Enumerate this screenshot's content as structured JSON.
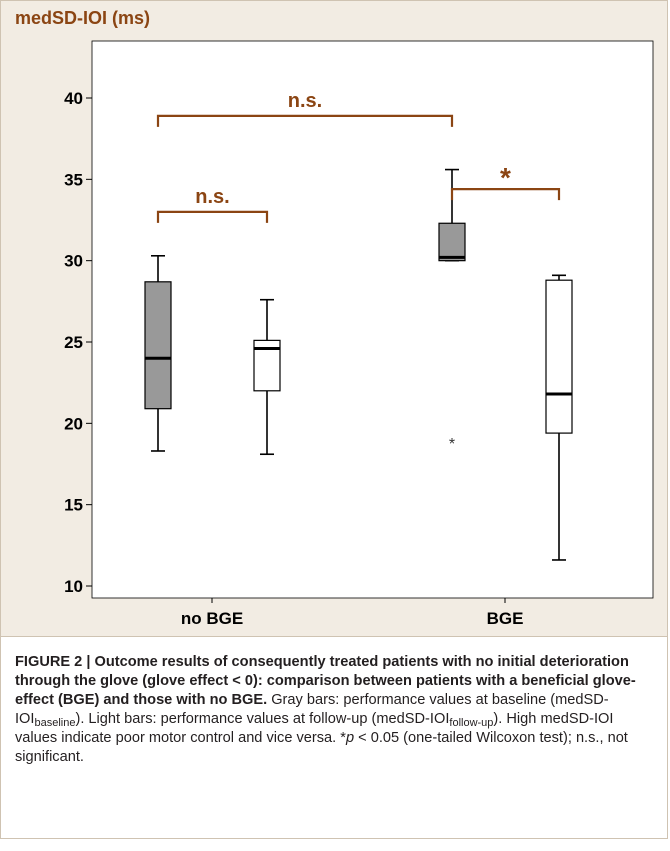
{
  "chart_data": {
    "type": "boxplot",
    "title": "medSD-IOI (ms)",
    "ylim": [
      9,
      41
    ],
    "yticks": [
      10,
      15,
      20,
      25,
      30,
      35,
      40
    ],
    "categories": [
      "no BGE",
      "BGE"
    ],
    "series": [
      {
        "name": "baseline",
        "color": "#999999"
      },
      {
        "name": "follow-up",
        "color": "#ffffff"
      }
    ],
    "boxes": [
      {
        "group": "no BGE",
        "series": "baseline",
        "min": 18.3,
        "q1": 20.9,
        "median": 24.0,
        "q3": 28.7,
        "max": 30.3,
        "outliers": []
      },
      {
        "group": "no BGE",
        "series": "follow-up",
        "min": 18.1,
        "q1": 22.0,
        "median": 24.6,
        "q3": 25.1,
        "max": 27.6,
        "outliers": []
      },
      {
        "group": "BGE",
        "series": "baseline",
        "min": 30.0,
        "q1": 30.0,
        "median": 30.2,
        "q3": 32.3,
        "max": 35.6,
        "outliers": [
          18.9
        ]
      },
      {
        "group": "BGE",
        "series": "follow-up",
        "min": 11.6,
        "q1": 19.4,
        "median": 21.8,
        "q3": 28.8,
        "max": 29.1,
        "outliers": []
      }
    ],
    "significance": [
      {
        "label": "n.s.",
        "from": "no BGE baseline",
        "to": "no BGE follow-up",
        "y": 33.0
      },
      {
        "label": "n.s.",
        "from": "no BGE baseline",
        "to": "BGE baseline",
        "y": 38.9
      },
      {
        "label": "*",
        "from": "BGE baseline",
        "to": "BGE follow-up",
        "y": 34.4
      }
    ]
  },
  "caption": {
    "lead": "FIGURE 2 | Outcome results of consequently treated patients with no initial deterioration through the glove (glove effect < 0): comparison between patients with a beneficial glove-effect (BGE) and those with no BGE.",
    "gray_pre": " Gray bars: performance values at baseline (medSD-IOI",
    "gray_sub": "baseline",
    "gray_post": ").",
    "light_pre": " Light bars: performance values at follow-up (medSD-IOI",
    "light_sub": "follow-up",
    "light_post": "). High medSD-IOI values indicate poor motor control and vice versa. *",
    "p": "p",
    "tail": " < 0.05 (one-tailed Wilcoxon test); n.s., not significant."
  },
  "colors": {
    "accent": "#8b4513",
    "panel_bg": "#f2ece3"
  }
}
